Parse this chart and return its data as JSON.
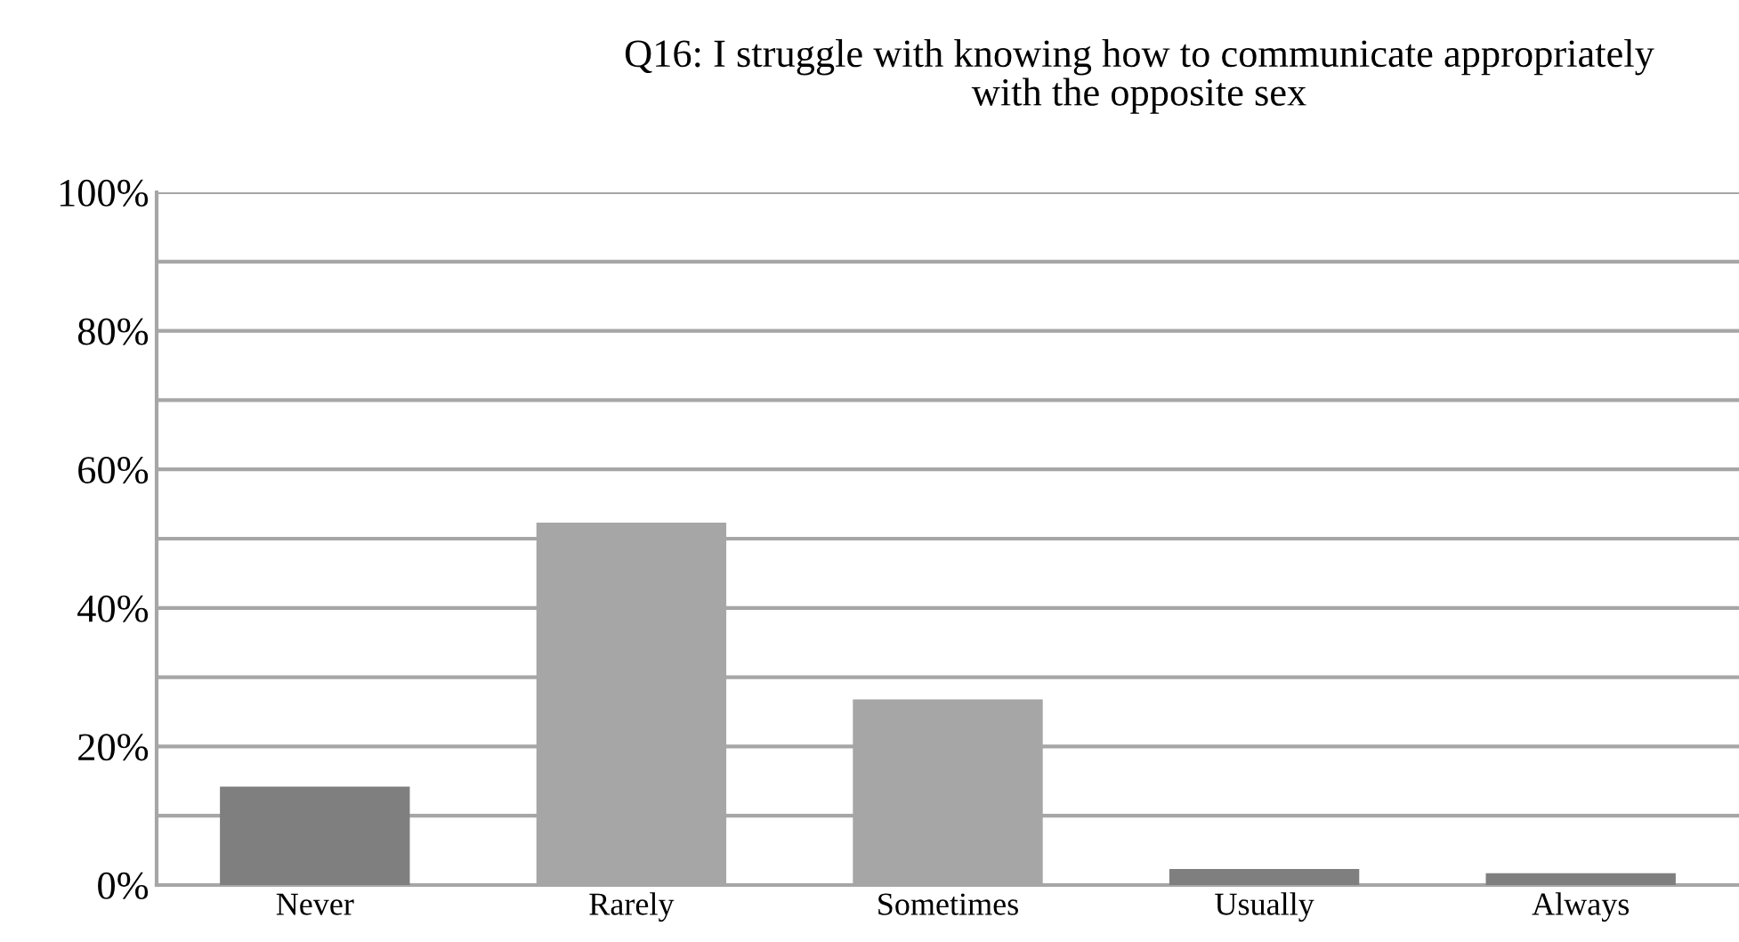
{
  "chart_data": {
    "type": "bar",
    "title": "Q16: I struggle with knowing how to communicate appropriately\nwith the opposite sex",
    "categories": [
      "Never",
      "Rarely",
      "Sometimes",
      "Usually",
      "Always"
    ],
    "values": [
      14.2,
      52.3,
      26.8,
      2.3,
      1.7
    ],
    "colors": [
      "#7f7f7f",
      "#a6a6a6",
      "#a6a6a6",
      "#7f7f7f",
      "#7f7f7f"
    ],
    "ylim": [
      0,
      100
    ],
    "yticks": [
      {
        "value": 0,
        "label": "0%"
      },
      {
        "value": 10,
        "label": null
      },
      {
        "value": 20,
        "label": "20%"
      },
      {
        "value": 30,
        "label": null
      },
      {
        "value": 40,
        "label": "40%"
      },
      {
        "value": 50,
        "label": null
      },
      {
        "value": 60,
        "label": "60%"
      },
      {
        "value": 70,
        "label": null
      },
      {
        "value": 80,
        "label": "80%"
      },
      {
        "value": 90,
        "label": null
      },
      {
        "value": 100,
        "label": "100%"
      }
    ],
    "grid": "y",
    "legend": false
  }
}
